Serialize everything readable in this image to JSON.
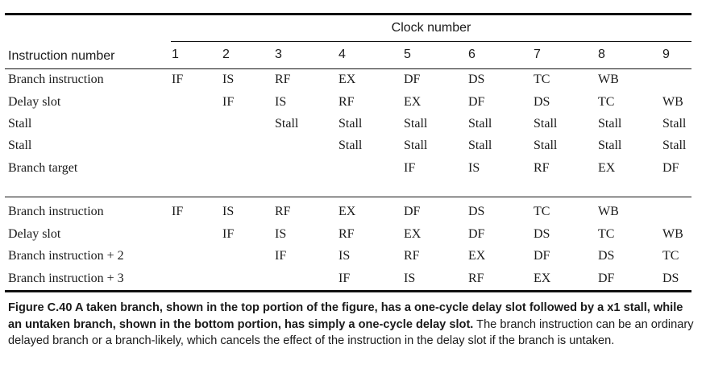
{
  "header": {
    "clock_title": "Clock number",
    "instruction_label": "Instruction number",
    "clocks": [
      "1",
      "2",
      "3",
      "4",
      "5",
      "6",
      "7",
      "8",
      "9"
    ]
  },
  "taken": [
    {
      "label": "Branch instruction",
      "cells": [
        "IF",
        "IS",
        "RF",
        "EX",
        "DF",
        "DS",
        "TC",
        "WB",
        ""
      ]
    },
    {
      "label": "Delay slot",
      "cells": [
        "",
        "IF",
        "IS",
        "RF",
        "EX",
        "DF",
        "DS",
        "TC",
        "WB"
      ]
    },
    {
      "label": "Stall",
      "cells": [
        "",
        "",
        "Stall",
        "Stall",
        "Stall",
        "Stall",
        "Stall",
        "Stall",
        "Stall"
      ]
    },
    {
      "label": "Stall",
      "cells": [
        "",
        "",
        "",
        "Stall",
        "Stall",
        "Stall",
        "Stall",
        "Stall",
        "Stall"
      ]
    },
    {
      "label": "Branch target",
      "cells": [
        "",
        "",
        "",
        "",
        "IF",
        "IS",
        "RF",
        "EX",
        "DF"
      ]
    }
  ],
  "untaken": [
    {
      "label": "Branch instruction",
      "cells": [
        "IF",
        "IS",
        "RF",
        "EX",
        "DF",
        "DS",
        "TC",
        "WB",
        ""
      ]
    },
    {
      "label": "Delay slot",
      "cells": [
        "",
        "IF",
        "IS",
        "RF",
        "EX",
        "DF",
        "DS",
        "TC",
        "WB"
      ]
    },
    {
      "label": "Branch instruction + 2",
      "cells": [
        "",
        "",
        "IF",
        "IS",
        "RF",
        "EX",
        "DF",
        "DS",
        "TC"
      ]
    },
    {
      "label": "Branch instruction + 3",
      "cells": [
        "",
        "",
        "",
        "IF",
        "IS",
        "RF",
        "EX",
        "DF",
        "DS"
      ]
    }
  ],
  "caption": {
    "bold": "Figure C.40 A taken branch, shown in the top portion of the figure, has a one-cycle delay slot followed by a x1 stall, while an untaken branch, shown in the bottom portion, has simply a one-cycle delay slot.",
    "regular": "The branch instruction can be an ordinary delayed branch or a branch-likely, which cancels the effect of the instruction in the delay slot if the branch is untaken."
  }
}
